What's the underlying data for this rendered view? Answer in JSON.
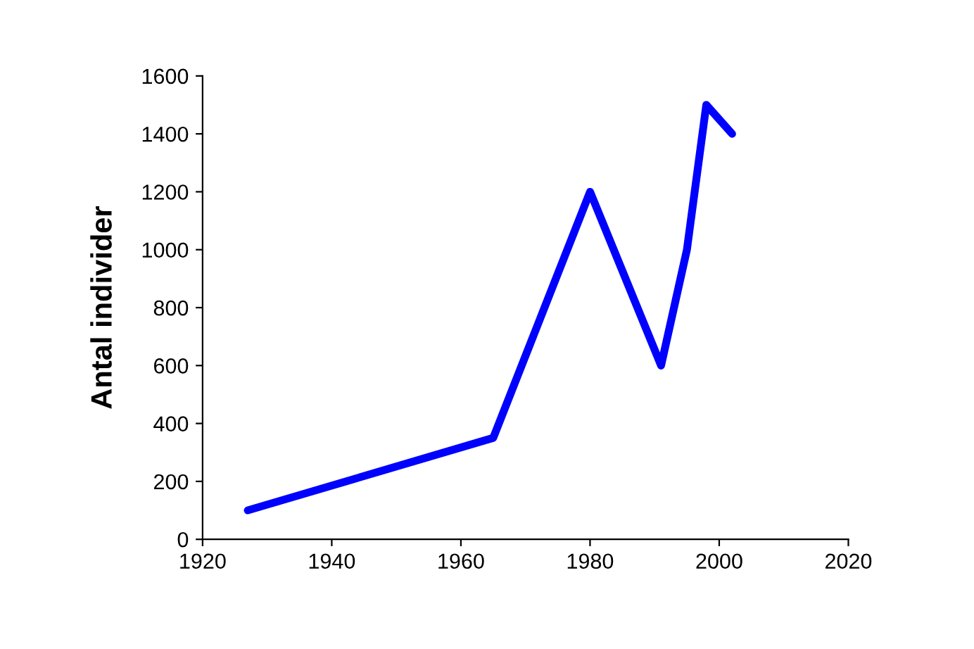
{
  "chart_data": {
    "type": "line",
    "ylabel": "Antal individer",
    "x": [
      1927,
      1965,
      1980,
      1991,
      1995,
      1998,
      2002
    ],
    "series": [
      {
        "color": "#0000ff",
        "values": [
          100,
          350,
          1200,
          600,
          1000,
          1500,
          1400
        ]
      }
    ],
    "xlim": [
      1920,
      2020
    ],
    "xticks": [
      1920,
      1940,
      1960,
      1980,
      2000,
      2020
    ],
    "ylim": [
      0,
      1600
    ],
    "yticks": [
      0,
      200,
      400,
      600,
      800,
      1000,
      1200,
      1400,
      1600
    ],
    "grid": false,
    "legend": false,
    "marker": "none",
    "line_style": "solid"
  }
}
